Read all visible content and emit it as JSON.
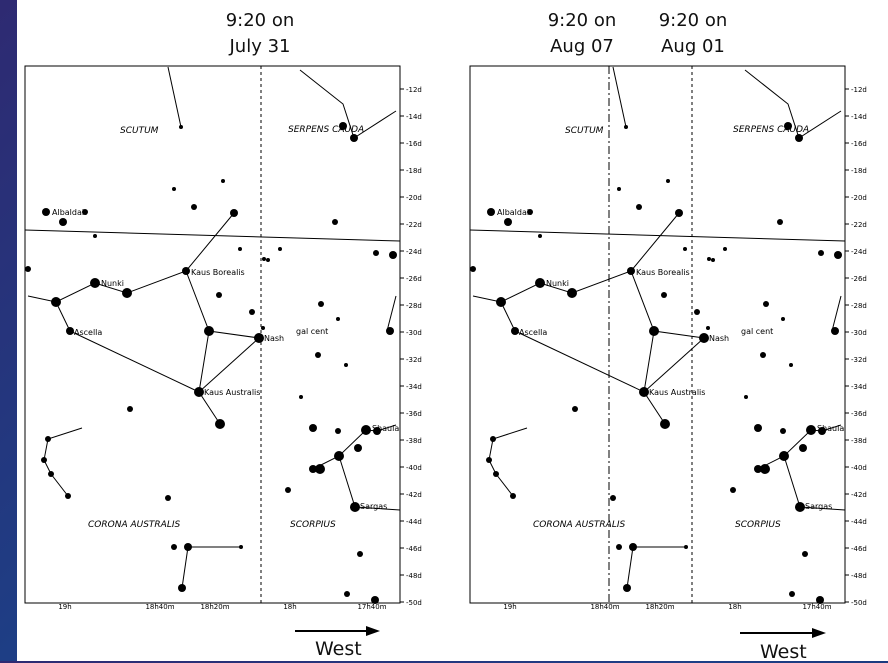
{
  "left_panel": {
    "header": {
      "time": "9:20 on",
      "date": "July 31"
    },
    "west_label": "West"
  },
  "right_panel": {
    "header_a": {
      "time": "9:20 on",
      "date": "Aug 07"
    },
    "header_b": {
      "time": "9:20 on",
      "date": "Aug 01"
    },
    "west_label": "West"
  },
  "dec_labels": [
    "-12d",
    "-14d",
    "-16d",
    "-18d",
    "-20d",
    "-22d",
    "-24d",
    "-26d",
    "-28d",
    "-30d",
    "-32d",
    "-34d",
    "-36d",
    "-38d",
    "-40d",
    "-42d",
    "-44d",
    "-46d",
    "-48d",
    "-50d"
  ],
  "ra_labels": [
    "19h",
    "18h40m",
    "18h20m",
    "18h",
    "17h40m"
  ],
  "stars": [
    {
      "name": "Albaldah"
    },
    {
      "name": "Nunki"
    },
    {
      "name": "Ascella"
    },
    {
      "name": "Kaus Borealis"
    },
    {
      "name": "Nash"
    },
    {
      "name": "Kaus Australis"
    },
    {
      "name": "gal cent"
    },
    {
      "name": "Shaula"
    },
    {
      "name": "Sargas"
    }
  ],
  "constellations": [
    "SCUTUM",
    "SERPENS CAUDA",
    "CORONA AUSTRALIS",
    "SCORPIUS"
  ],
  "colors": {
    "background": "#1f3a80",
    "chart": "#ffffff",
    "ink": "#000000"
  }
}
